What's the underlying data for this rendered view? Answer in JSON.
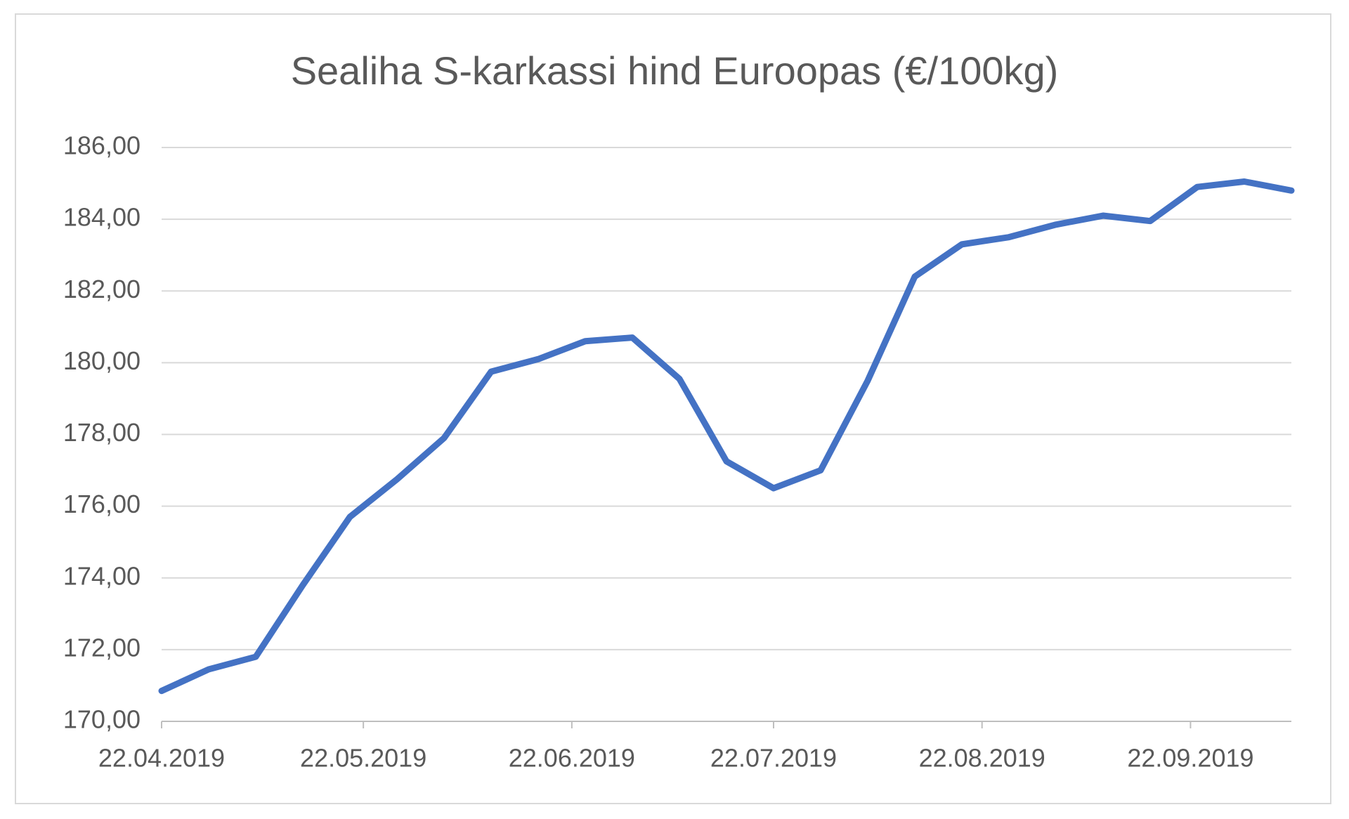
{
  "chart_data": {
    "type": "line",
    "title": "Sealiha S-karkassi hind Euroopas (€/100kg)",
    "x": [
      "22.04.2019",
      "29.04.2019",
      "06.05.2019",
      "13.05.2019",
      "20.05.2019",
      "27.05.2019",
      "03.06.2019",
      "10.06.2019",
      "17.06.2019",
      "24.06.2019",
      "01.07.2019",
      "08.07.2019",
      "15.07.2019",
      "22.07.2019",
      "29.07.2019",
      "05.08.2019",
      "12.08.2019",
      "19.08.2019",
      "26.08.2019",
      "02.09.2019",
      "09.09.2019",
      "16.09.2019",
      "23.09.2019",
      "30.09.2019",
      "07.10.2019"
    ],
    "series": [
      {
        "color": "#4472c4",
        "values": [
          170.85,
          171.45,
          171.8,
          173.8,
          175.7,
          176.75,
          177.9,
          179.75,
          180.1,
          180.6,
          180.7,
          179.55,
          177.25,
          176.5,
          177.0,
          179.5,
          182.4,
          183.3,
          183.5,
          183.85,
          184.1,
          183.95,
          184.9,
          185.05,
          184.8
        ]
      }
    ],
    "xlim": [
      "22.04.2019",
      "07.10.2019"
    ],
    "xticks": [
      "22.04.2019",
      "22.05.2019",
      "22.06.2019",
      "22.07.2019",
      "22.08.2019",
      "22.09.2019"
    ],
    "ylim": [
      170,
      186
    ],
    "yticks": [
      {
        "value": 170,
        "label": "170,00"
      },
      {
        "value": 172,
        "label": "172,00"
      },
      {
        "value": 174,
        "label": "174,00"
      },
      {
        "value": 176,
        "label": "176,00"
      },
      {
        "value": 178,
        "label": "178,00"
      },
      {
        "value": 180,
        "label": "180,00"
      },
      {
        "value": 182,
        "label": "182,00"
      },
      {
        "value": 184,
        "label": "184,00"
      },
      {
        "value": 186,
        "label": "186,00"
      }
    ],
    "grid": true
  }
}
